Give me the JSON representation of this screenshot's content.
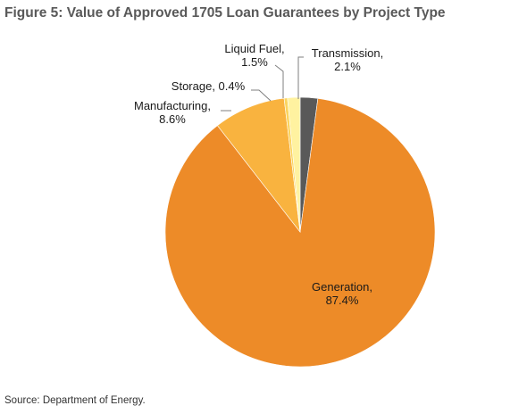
{
  "figure": {
    "title": "Figure 5: Value of Approved 1705 Loan Guarantees by Project Type",
    "source": "Source: Department of Energy."
  },
  "chart_data": {
    "type": "pie",
    "title": "Figure 5: Value of Approved 1705 Loan Guarantees by Project Type",
    "slices": [
      {
        "name": "Transmission",
        "value": 2.1,
        "label": [
          "Transmission,",
          "2.1%"
        ],
        "color": "#595959"
      },
      {
        "name": "Generation",
        "value": 87.4,
        "label": [
          "Generation,",
          "87.4%"
        ],
        "color": "#ed8b28"
      },
      {
        "name": "Manufacturing",
        "value": 8.6,
        "label": [
          "Manufacturing,",
          "8.6%"
        ],
        "color": "#f9b33f"
      },
      {
        "name": "Storage",
        "value": 0.4,
        "label": [
          "Storage, 0.4%"
        ],
        "color": "#fbd45e"
      },
      {
        "name": "Liquid Fuel",
        "value": 1.5,
        "label": [
          "Liquid Fuel,",
          "1.5%"
        ],
        "color": "#fff2a0"
      }
    ],
    "start": "12 o'clock",
    "direction": "clockwise",
    "legend": "none (labels on slices)"
  }
}
